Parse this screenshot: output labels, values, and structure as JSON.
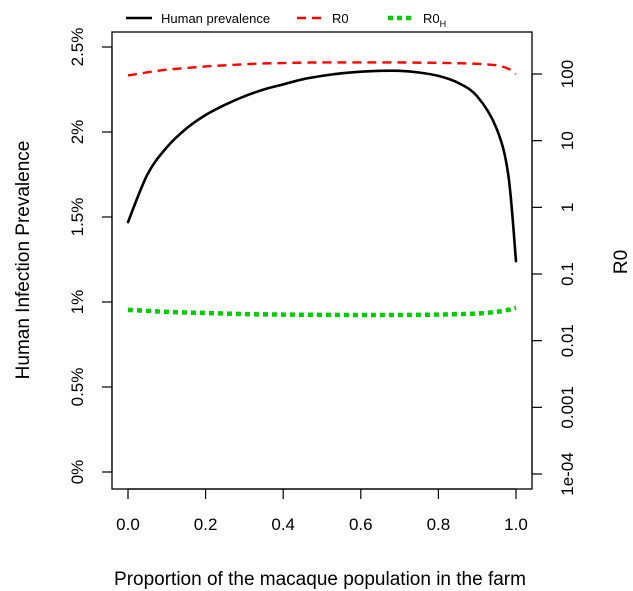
{
  "chart_data": {
    "type": "line",
    "x": [
      0.0,
      0.05,
      0.1,
      0.15,
      0.2,
      0.25,
      0.3,
      0.35,
      0.4,
      0.45,
      0.5,
      0.55,
      0.6,
      0.65,
      0.7,
      0.75,
      0.8,
      0.85,
      0.9,
      0.95,
      0.98,
      1.0
    ],
    "xlabel": "Proportion of the macaque population in the farm",
    "ylabel_left": "Human Infection Prevalence",
    "ylabel_right": "R0",
    "xlim": [
      0,
      1
    ],
    "xticks": [
      0.0,
      0.2,
      0.4,
      0.6,
      0.8,
      1.0
    ],
    "xtick_labels": [
      "0.0",
      "0.2",
      "0.4",
      "0.6",
      "0.8",
      "1.0"
    ],
    "ylim_left": [
      0,
      2.5
    ],
    "yticks_left": [
      0,
      0.5,
      1,
      1.5,
      2,
      2.5
    ],
    "ytick_labels_left": [
      "0%",
      "0.5%",
      "1%",
      "1.5%",
      "2%",
      "2.5%"
    ],
    "ylim_right_log10": [
      -4,
      2
    ],
    "yticks_right": [
      0.0001,
      0.001,
      0.01,
      0.1,
      1,
      10,
      100
    ],
    "ytick_labels_right": [
      "1e-04",
      "0.001",
      "0.01",
      "0.1",
      "1",
      "10",
      "100"
    ],
    "grid": false,
    "legend_position": "top",
    "series": [
      {
        "name": "Human prevalence",
        "axis": "left",
        "color": "#000000",
        "style": "solid",
        "values": [
          1.47,
          1.75,
          1.91,
          2.02,
          2.1,
          2.16,
          2.21,
          2.25,
          2.28,
          2.31,
          2.33,
          2.345,
          2.355,
          2.36,
          2.36,
          2.35,
          2.33,
          2.29,
          2.21,
          2.02,
          1.75,
          1.24
        ]
      },
      {
        "name": "R0",
        "axis": "right",
        "color": "#ff0000",
        "style": "dashed",
        "values": [
          95,
          106,
          116,
          123,
          130,
          135,
          140,
          144,
          146,
          148,
          149,
          149,
          149,
          149,
          149,
          148,
          147,
          145,
          142,
          135,
          120,
          100
        ]
      },
      {
        "name": "R0",
        "name_subscript": "H",
        "axis": "right",
        "color": "#00cc00",
        "style": "dotted",
        "values": [
          0.029,
          0.028,
          0.027,
          0.0265,
          0.026,
          0.0255,
          0.025,
          0.0248,
          0.0246,
          0.0245,
          0.0244,
          0.0243,
          0.0243,
          0.0243,
          0.0243,
          0.0244,
          0.0246,
          0.025,
          0.0255,
          0.027,
          0.029,
          0.031
        ]
      }
    ]
  }
}
